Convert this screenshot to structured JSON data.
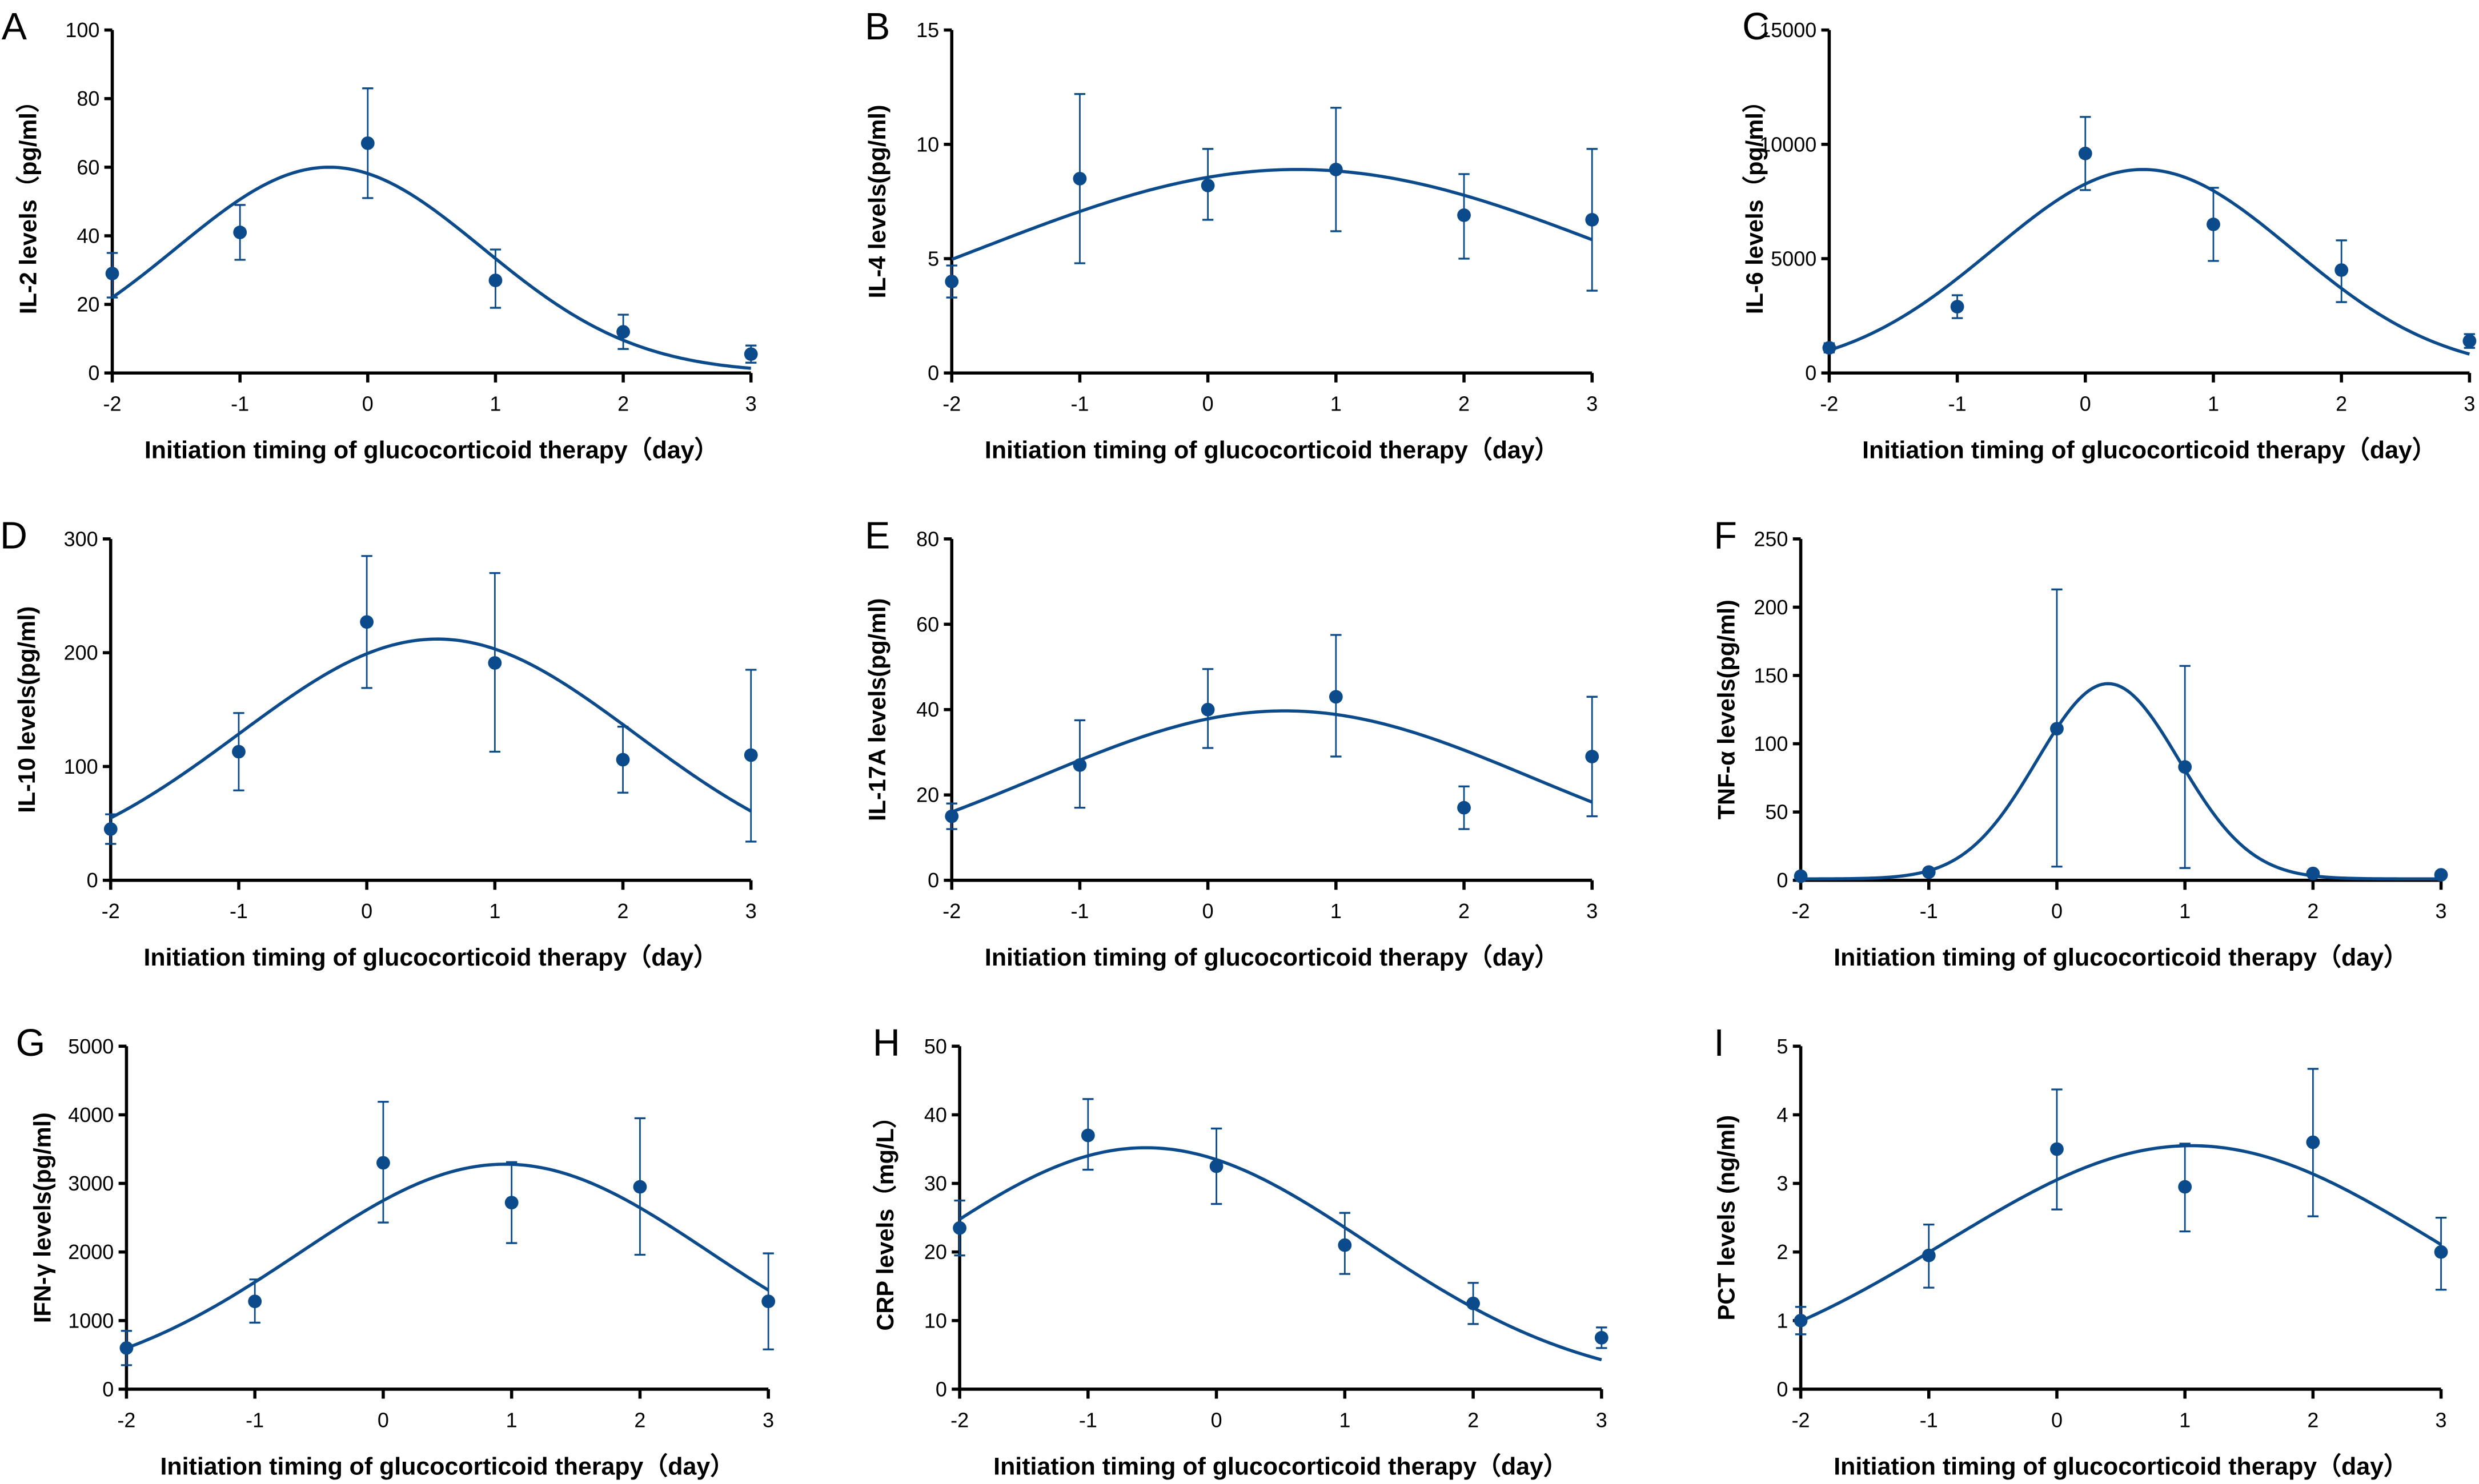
{
  "chart_data": [
    {
      "panel": "A",
      "type": "scatter",
      "ylabel": "IL-2 levels（pg/ml）",
      "xlabel": "Initiation timing of glucocorticoid therapy（day）",
      "x": [
        -2,
        -1,
        0,
        1,
        2,
        3
      ],
      "xlim": [
        -2,
        3
      ],
      "ylim": [
        0,
        100
      ],
      "yticks": [
        0,
        20,
        40,
        60,
        80,
        100
      ],
      "values": [
        29,
        41,
        67,
        27,
        12,
        5.5
      ],
      "err_low": [
        22,
        33,
        51,
        19,
        7,
        3
      ],
      "err_high": [
        35,
        49,
        83,
        36,
        17,
        8
      ],
      "fit": {
        "type": "gaussian",
        "amplitude": 60,
        "center": -0.3,
        "sd": 1.2,
        "baseline": 0
      }
    },
    {
      "panel": "B",
      "type": "scatter",
      "ylabel": "IL-4 levels(pg/ml)",
      "xlabel": "Initiation timing of glucocorticoid therapy（day）",
      "x": [
        -2,
        -1,
        0,
        1,
        2,
        3
      ],
      "xlim": [
        -2,
        3
      ],
      "ylim": [
        0,
        15
      ],
      "yticks": [
        0,
        5,
        10,
        15
      ],
      "values": [
        4.0,
        8.5,
        8.2,
        8.9,
        6.9,
        6.7
      ],
      "err_low": [
        3.3,
        4.8,
        6.7,
        6.2,
        5.0,
        3.6
      ],
      "err_high": [
        4.7,
        12.2,
        9.8,
        11.6,
        8.7,
        9.8
      ],
      "fit": {
        "type": "gaussian",
        "amplitude": 8.9,
        "center": 0.7,
        "sd": 2.5,
        "baseline": 0
      }
    },
    {
      "panel": "C",
      "type": "scatter",
      "ylabel": "IL-6 levels（pg/ml）",
      "xlabel": "Initiation timing of glucocorticoid therapy（day）",
      "x": [
        -2,
        -1,
        0,
        1,
        2,
        3
      ],
      "xlim": [
        -2,
        3
      ],
      "ylim": [
        0,
        15000
      ],
      "yticks": [
        0,
        5000,
        10000,
        15000
      ],
      "values": [
        1100,
        2900,
        9600,
        6500,
        4500,
        1400
      ],
      "err_low": [
        900,
        2400,
        8000,
        4900,
        3100,
        1100
      ],
      "err_high": [
        1300,
        3400,
        11200,
        8100,
        5800,
        1700
      ],
      "fit": {
        "type": "gaussian",
        "amplitude": 8900,
        "center": 0.45,
        "sd": 1.17,
        "baseline": 0
      }
    },
    {
      "panel": "D",
      "type": "scatter",
      "ylabel": "IL-10 levels(pg/ml)",
      "xlabel": "Initiation timing of glucocorticoid therapy（day）",
      "x": [
        -2,
        -1,
        0,
        1,
        2,
        3
      ],
      "xlim": [
        -2,
        3
      ],
      "ylim": [
        0,
        300
      ],
      "yticks": [
        0,
        100,
        200,
        300
      ],
      "values": [
        45,
        113,
        227,
        191,
        106,
        110
      ],
      "err_low": [
        32,
        79,
        169,
        113,
        77,
        34
      ],
      "err_high": [
        58,
        147,
        285,
        270,
        135,
        185
      ],
      "fit": {
        "type": "gaussian",
        "amplitude": 212,
        "center": 0.55,
        "sd": 1.55,
        "baseline": 0
      }
    },
    {
      "panel": "E",
      "type": "scatter",
      "ylabel": "IL-17A levels(pg/ml)",
      "xlabel": "Initiation timing of glucocorticoid therapy（day）",
      "x": [
        -2,
        -1,
        0,
        1,
        2,
        3
      ],
      "xlim": [
        -2,
        3
      ],
      "ylim": [
        0,
        80
      ],
      "yticks": [
        0,
        20,
        40,
        60,
        80
      ],
      "values": [
        15,
        27,
        40,
        43,
        17,
        29
      ],
      "err_low": [
        12,
        17,
        31,
        29,
        12,
        15
      ],
      "err_high": [
        18,
        37.5,
        49.5,
        57.5,
        22,
        43
      ],
      "fit": {
        "type": "gaussian",
        "amplitude": 39.7,
        "center": 0.6,
        "sd": 1.93,
        "baseline": 0
      }
    },
    {
      "panel": "F",
      "type": "scatter",
      "ylabel": "TNF-α levels(pg/ml)",
      "xlabel": "Initiation timing of glucocorticoid therapy（day）",
      "x": [
        -2,
        -1,
        0,
        1,
        2,
        3
      ],
      "xlim": [
        -2,
        3
      ],
      "ylim": [
        0,
        250
      ],
      "yticks": [
        0,
        50,
        100,
        150,
        200,
        250
      ],
      "values": [
        3,
        6,
        111,
        83,
        5,
        4
      ],
      "err_low": [
        2,
        4,
        10,
        9,
        3,
        3
      ],
      "err_high": [
        4,
        8,
        213,
        157,
        7,
        5
      ],
      "fit": {
        "type": "gaussian",
        "amplitude": 143,
        "center": 0.4,
        "sd": 0.556,
        "baseline": 1
      }
    },
    {
      "panel": "G",
      "type": "scatter",
      "ylabel": "IFN-γ levels(pg/ml)",
      "xlabel": "Initiation timing of glucocorticoid therapy（day）",
      "x": [
        -2,
        -1,
        0,
        1,
        2,
        3
      ],
      "xlim": [
        -2,
        3
      ],
      "ylim": [
        0,
        5000
      ],
      "yticks": [
        0,
        1000,
        2000,
        3000,
        4000,
        5000
      ],
      "values": [
        600,
        1280,
        3300,
        2720,
        2950,
        1280
      ],
      "err_low": [
        350,
        970,
        2430,
        2130,
        1960,
        580
      ],
      "err_high": [
        850,
        1600,
        4190,
        3310,
        3950,
        1980
      ],
      "fit": {
        "type": "gaussian",
        "amplitude": 3280,
        "center": 0.95,
        "sd": 1.6,
        "baseline": 0
      }
    },
    {
      "panel": "H",
      "type": "scatter",
      "ylabel": "CRP levels（mg/L）",
      "xlabel": "Initiation timing of glucocorticoid therapy（day）",
      "x": [
        -2,
        -1,
        0,
        1,
        2,
        3
      ],
      "xlim": [
        -2,
        3
      ],
      "ylim": [
        0,
        50
      ],
      "yticks": [
        0,
        10,
        20,
        30,
        40,
        50
      ],
      "values": [
        23.5,
        37,
        32.5,
        21,
        12.5,
        7.5
      ],
      "err_low": [
        19.5,
        32,
        27,
        16.8,
        9.5,
        6
      ],
      "err_high": [
        27.5,
        42.3,
        38,
        25.7,
        15.5,
        9
      ],
      "fit": {
        "type": "gaussian",
        "amplitude": 35.2,
        "center": -0.55,
        "sd": 1.73,
        "baseline": 0
      }
    },
    {
      "panel": "I",
      "type": "scatter",
      "ylabel": "PCT levels (ng/ml)",
      "xlabel": "Initiation timing of glucocorticoid therapy（day）",
      "x": [
        -2,
        -1,
        0,
        1,
        2,
        3
      ],
      "xlim": [
        -2,
        3
      ],
      "ylim": [
        0,
        5
      ],
      "yticks": [
        0,
        1,
        2,
        3,
        4,
        5
      ],
      "values": [
        1.0,
        1.95,
        3.5,
        2.95,
        3.6,
        2.0
      ],
      "err_low": [
        0.8,
        1.48,
        2.62,
        2.3,
        2.52,
        1.45
      ],
      "err_high": [
        1.2,
        2.4,
        4.37,
        3.58,
        4.67,
        2.5
      ],
      "fit": {
        "type": "gaussian",
        "amplitude": 3.55,
        "center": 1.05,
        "sd": 1.91,
        "baseline": 0
      }
    }
  ],
  "colors": {
    "series": "#0b4a8b",
    "axis": "#000000"
  }
}
